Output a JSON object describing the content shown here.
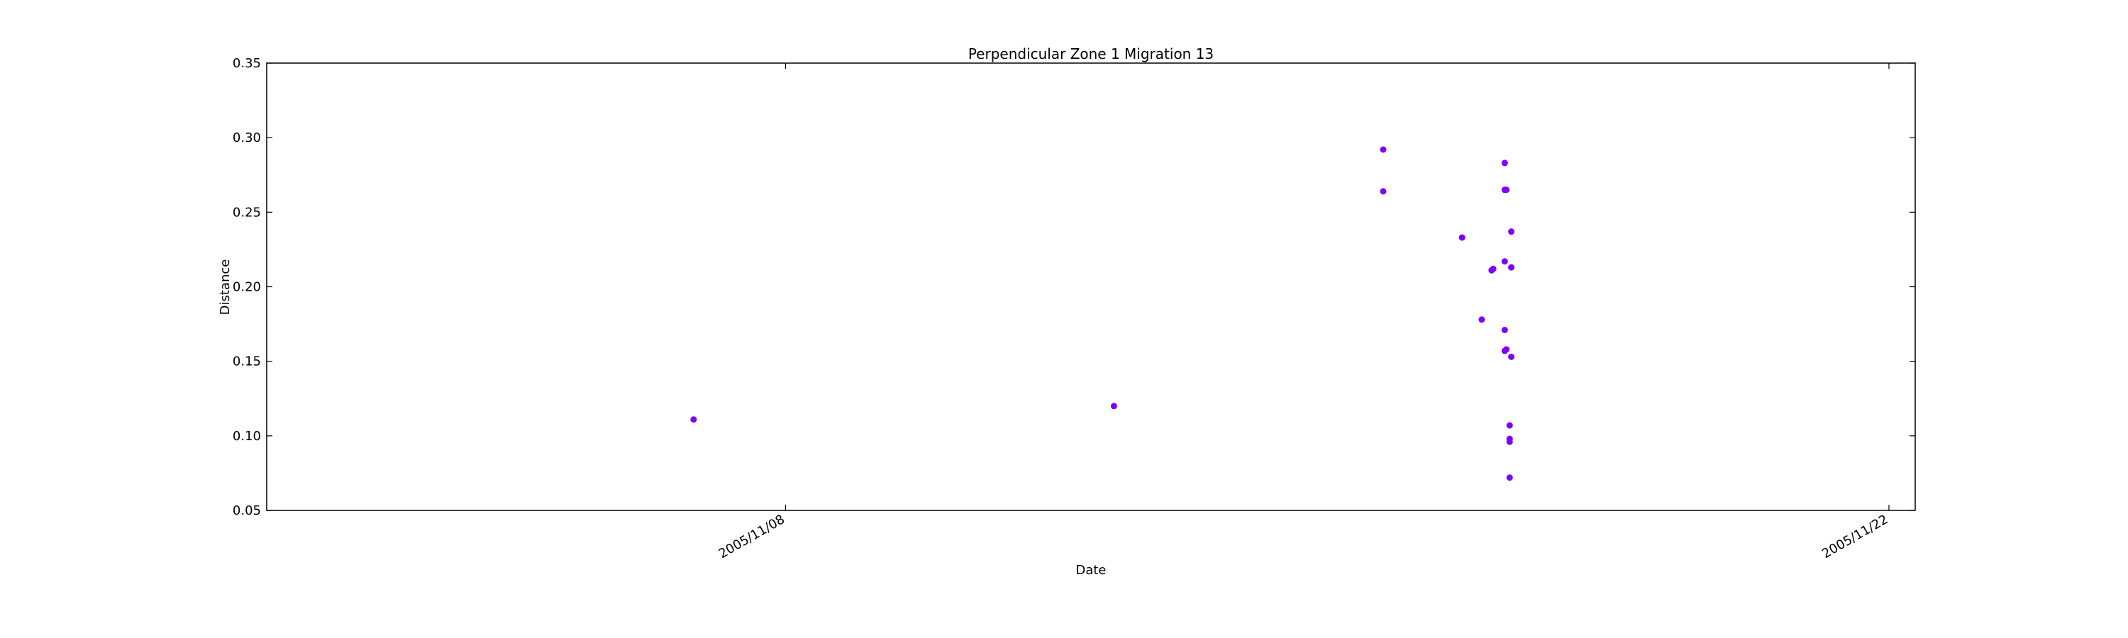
{
  "chart_data": {
    "type": "scatter",
    "title": "Perpendicular Zone 1 Migration 13",
    "xlabel": "Date",
    "ylabel": "Distance",
    "xlim": [
      "2005-11-01T10:00",
      "2005-11-22T08:00"
    ],
    "ylim": [
      0.05,
      0.35
    ],
    "yticks": [
      {
        "value": 0.05,
        "label": "0.05"
      },
      {
        "value": 0.1,
        "label": "0.10"
      },
      {
        "value": 0.15,
        "label": "0.15"
      },
      {
        "value": 0.2,
        "label": "0.20"
      },
      {
        "value": 0.25,
        "label": "0.25"
      },
      {
        "value": 0.3,
        "label": "0.30"
      },
      {
        "value": 0.35,
        "label": "0.35"
      }
    ],
    "xticks": [
      {
        "value": "2005-11-08T00:00",
        "label": "2005/11/08"
      },
      {
        "value": "2005-11-22T00:00",
        "label": "2005/11/22"
      }
    ],
    "grid": false,
    "marker_color": "#7f00ff",
    "points": [
      {
        "x": "2005-11-06T20:00",
        "y": 0.111
      },
      {
        "x": "2005-11-12T04:00",
        "y": 0.12
      },
      {
        "x": "2005-11-15T14:00",
        "y": 0.292
      },
      {
        "x": "2005-11-15T14:00",
        "y": 0.264
      },
      {
        "x": "2005-11-16T14:00",
        "y": 0.233
      },
      {
        "x": "2005-11-16T20:00",
        "y": 0.178
      },
      {
        "x": "2005-11-16T23:00",
        "y": 0.211
      },
      {
        "x": "2005-11-16T23:30",
        "y": 0.212
      },
      {
        "x": "2005-11-17T03:00",
        "y": 0.283
      },
      {
        "x": "2005-11-17T03:00",
        "y": 0.265
      },
      {
        "x": "2005-11-17T03:30",
        "y": 0.265
      },
      {
        "x": "2005-11-17T03:00",
        "y": 0.217
      },
      {
        "x": "2005-11-17T03:00",
        "y": 0.171
      },
      {
        "x": "2005-11-17T03:00",
        "y": 0.157
      },
      {
        "x": "2005-11-17T03:30",
        "y": 0.158
      },
      {
        "x": "2005-11-17T05:00",
        "y": 0.237
      },
      {
        "x": "2005-11-17T05:00",
        "y": 0.213
      },
      {
        "x": "2005-11-17T05:00",
        "y": 0.153
      },
      {
        "x": "2005-11-17T04:30",
        "y": 0.107
      },
      {
        "x": "2005-11-17T04:30",
        "y": 0.098
      },
      {
        "x": "2005-11-17T04:30",
        "y": 0.096
      },
      {
        "x": "2005-11-17T04:30",
        "y": 0.072
      }
    ]
  }
}
